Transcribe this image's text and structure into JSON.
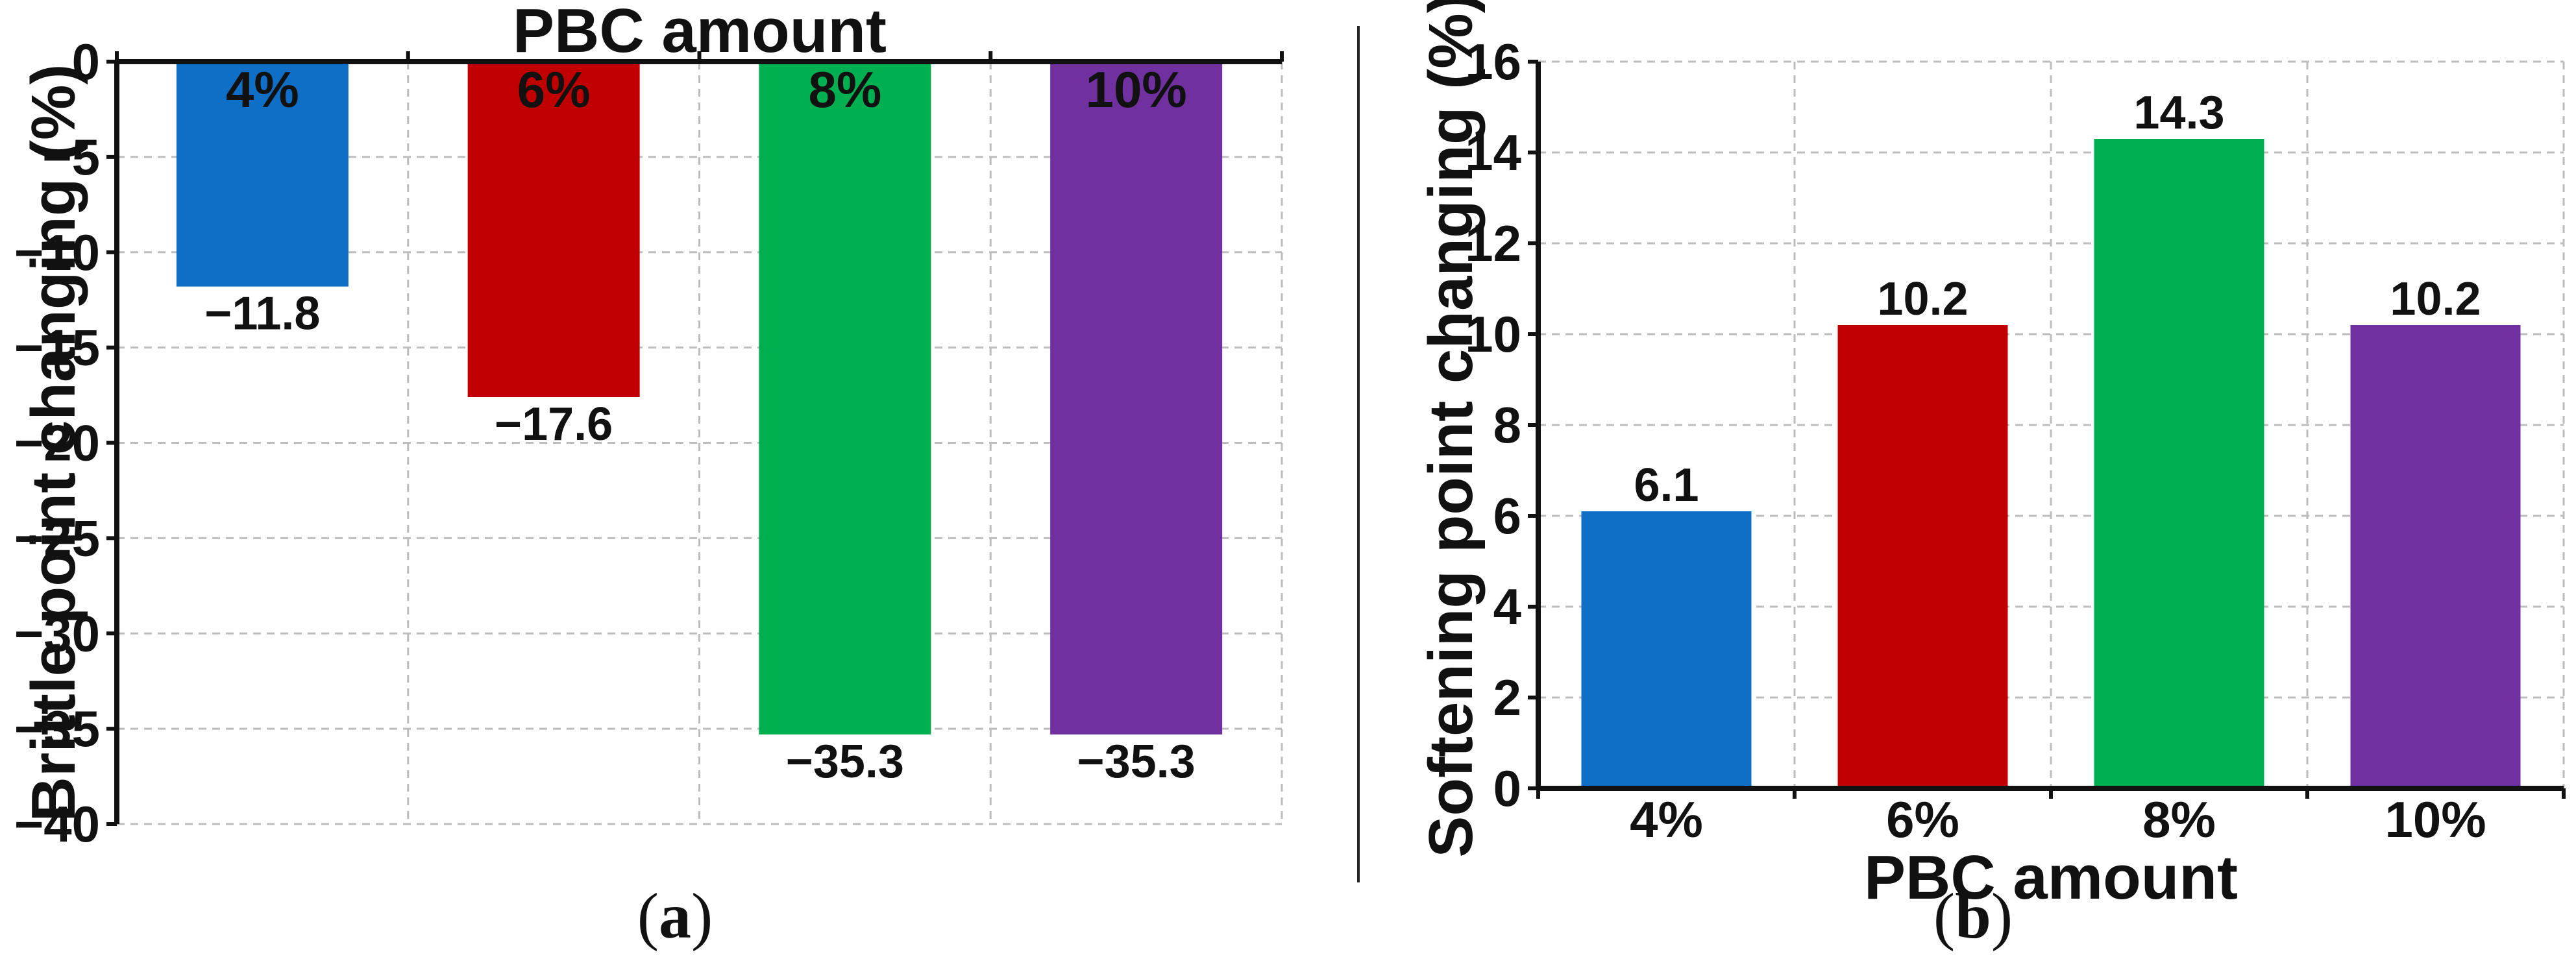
{
  "colors": {
    "blue": "#0f6fc6",
    "red": "#c00000",
    "green": "#00b050",
    "purple": "#7030a0"
  },
  "chart_data": [
    {
      "panel": "a",
      "type": "bar",
      "categories": [
        "4%",
        "6%",
        "8%",
        "10%"
      ],
      "values": [
        -11.8,
        -17.6,
        -35.3,
        -35.3
      ],
      "value_labels": [
        "−11.8",
        "−17.6",
        "−35.3",
        "−35.3"
      ],
      "bar_colors": [
        "#0f6fc6",
        "#c00000",
        "#00b050",
        "#7030a0"
      ],
      "xlabel": "PBC amount",
      "xlabel_position": "top",
      "ylabel": "Brittle point changing (%)",
      "ylim": [
        -40,
        0
      ],
      "yticks": [
        0,
        -5,
        -10,
        -15,
        -20,
        -25,
        -30,
        -35,
        -40
      ],
      "ytick_labels": [
        "0",
        "−5",
        "−10",
        "−15",
        "−20",
        "−25",
        "−30",
        "−35",
        "−40"
      ],
      "grid": true
    },
    {
      "panel": "b",
      "type": "bar",
      "categories": [
        "4%",
        "6%",
        "8%",
        "10%"
      ],
      "values": [
        6.1,
        10.2,
        14.3,
        10.2
      ],
      "value_labels": [
        "6.1",
        "10.2",
        "14.3",
        "10.2"
      ],
      "bar_colors": [
        "#0f6fc6",
        "#c00000",
        "#00b050",
        "#7030a0"
      ],
      "xlabel": "PBC amount",
      "xlabel_position": "bottom",
      "ylabel": "Softening point changing (%)",
      "ylim": [
        0,
        16
      ],
      "yticks": [
        0,
        2,
        4,
        6,
        8,
        10,
        12,
        14,
        16
      ],
      "ytick_labels": [
        "0",
        "2",
        "4",
        "6",
        "8",
        "10",
        "12",
        "14",
        "16"
      ],
      "grid": true
    }
  ],
  "captions": {
    "a": {
      "open": "(",
      "letter": "a",
      "close": ")"
    },
    "b": {
      "open": "(",
      "letter": "b",
      "close": ")"
    }
  }
}
